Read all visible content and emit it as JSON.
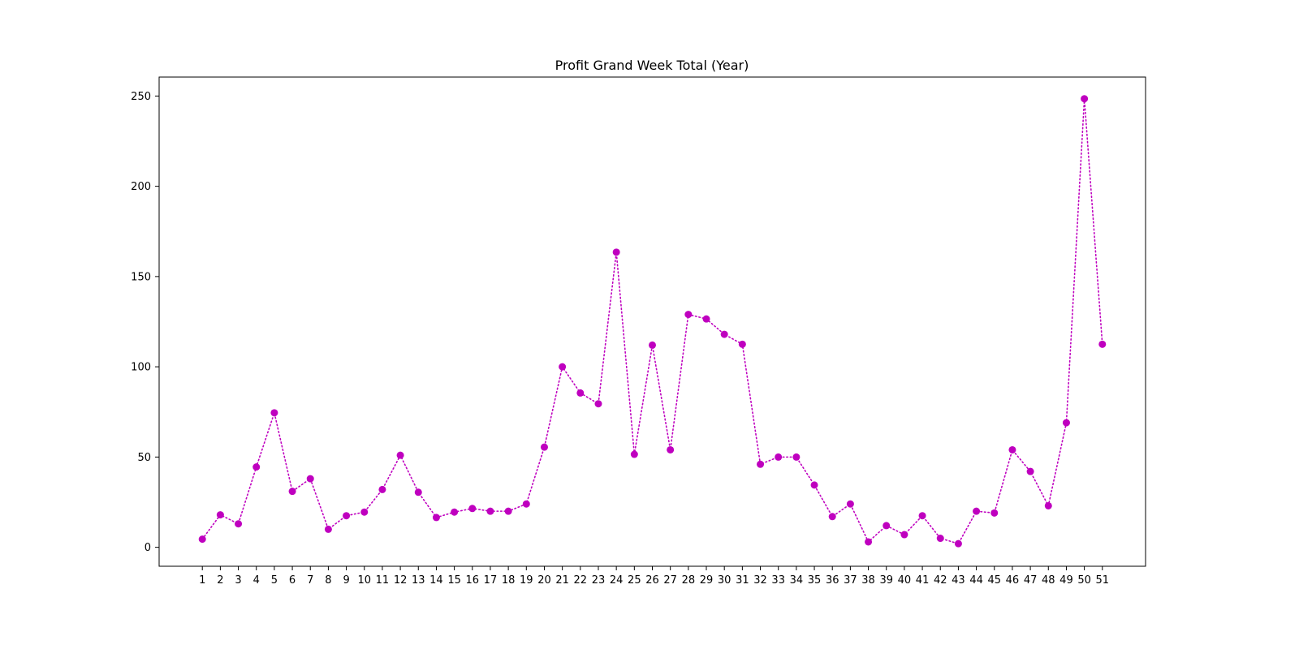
{
  "chart_data": {
    "type": "line",
    "title": "Profit Grand Week Total (Year)",
    "xlabel": "",
    "ylabel": "",
    "categories": [
      "1",
      "2",
      "3",
      "4",
      "5",
      "6",
      "7",
      "8",
      "9",
      "10",
      "11",
      "12",
      "13",
      "14",
      "15",
      "16",
      "17",
      "18",
      "19",
      "20",
      "21",
      "22",
      "23",
      "24",
      "25",
      "26",
      "27",
      "28",
      "29",
      "30",
      "31",
      "32",
      "33",
      "34",
      "35",
      "36",
      "37",
      "38",
      "39",
      "40",
      "41",
      "42",
      "43",
      "44",
      "45",
      "46",
      "47",
      "48",
      "49",
      "50",
      "51"
    ],
    "series": [
      {
        "values": [
          4.5,
          18,
          13,
          44.5,
          74.5,
          31,
          38,
          10,
          17.5,
          19.5,
          32,
          51,
          30.5,
          16.5,
          19.5,
          21.5,
          20,
          20,
          24,
          55.5,
          100,
          85.5,
          79.5,
          163.5,
          51.5,
          112,
          54,
          129,
          126.5,
          118,
          112.5,
          46,
          50,
          50,
          34.5,
          17,
          24,
          3,
          12,
          7,
          17.5,
          5,
          2,
          20,
          19,
          54,
          42,
          23,
          69,
          248.5,
          112.5
        ]
      }
    ],
    "ylim": [
      -10.5,
      260.5
    ],
    "yticks": [
      0,
      50,
      100,
      150,
      200,
      250
    ],
    "grid": false,
    "legend": "none",
    "colors": {
      "line": "#bf00bf",
      "marker": "#bf00bf",
      "axis": "#000000"
    }
  }
}
